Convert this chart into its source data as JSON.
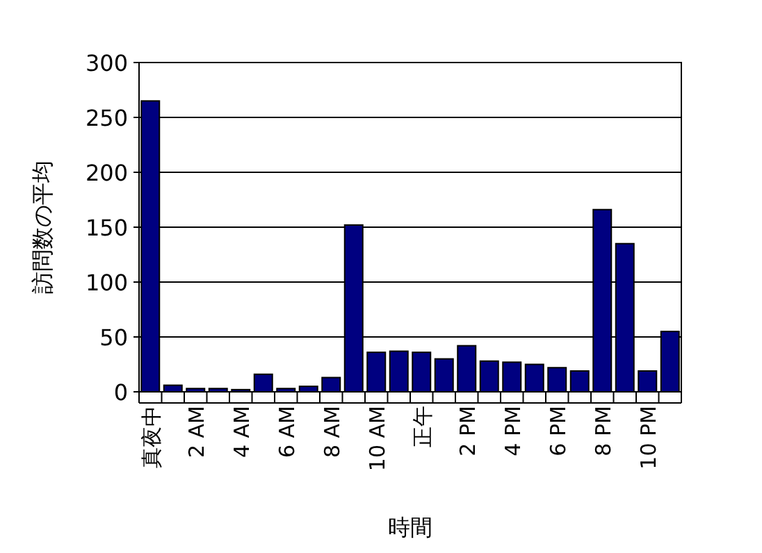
{
  "chart_data": {
    "type": "bar",
    "xlabel": "時間",
    "ylabel": "訪問数の平均",
    "categories": [
      "真夜中",
      null,
      "2 AM",
      null,
      "4 AM",
      null,
      "6 AM",
      null,
      "8 AM",
      null,
      "10 AM",
      null,
      "正午",
      null,
      "2 PM",
      null,
      "4 PM",
      null,
      "6 PM",
      null,
      "8 PM",
      null,
      "10 PM",
      null
    ],
    "values": [
      265,
      6,
      3,
      3,
      2,
      16,
      3,
      5,
      13,
      152,
      36,
      37,
      36,
      30,
      42,
      28,
      27,
      25,
      22,
      19,
      166,
      135,
      19,
      55
    ],
    "color": "#000080",
    "ylim": [
      0,
      300
    ],
    "yticks": [
      0,
      50,
      100,
      150,
      200,
      250,
      300
    ],
    "grid": "y"
  }
}
